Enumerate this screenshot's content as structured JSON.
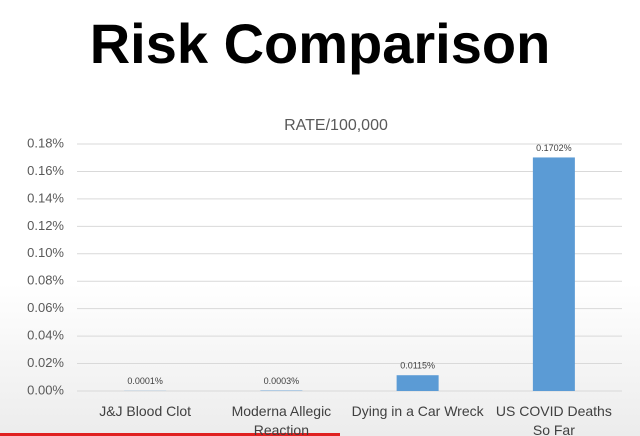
{
  "chart_data": {
    "type": "bar",
    "heading": "Risk Comparison",
    "title": "RATE/100,000",
    "categories": [
      "J&J Blood Clot",
      "Moderna Allegic Reaction",
      "Dying in a Car Wreck",
      "US COVID Deaths So Far"
    ],
    "values": [
      0.0001,
      0.0003,
      0.0115,
      0.1702
    ],
    "value_labels": [
      "0.0001%",
      "0.0003%",
      "0.0115%",
      "0.1702%"
    ],
    "color": "#5b9bd5",
    "ylim": [
      0,
      0.18
    ],
    "yticks": [
      {
        "value": 0,
        "label": "0.00%"
      },
      {
        "value": 0.02,
        "label": "0.02%"
      },
      {
        "value": 0.04,
        "label": "0.04%"
      },
      {
        "value": 0.06,
        "label": "0.06%"
      },
      {
        "value": 0.08,
        "label": "0.08%"
      },
      {
        "value": 0.1,
        "label": "0.10%"
      },
      {
        "value": 0.12,
        "label": "0.12%"
      },
      {
        "value": 0.14,
        "label": "0.14%"
      },
      {
        "value": 0.16,
        "label": "0.16%"
      },
      {
        "value": 0.18,
        "label": "0.18%"
      }
    ],
    "grid": true
  }
}
